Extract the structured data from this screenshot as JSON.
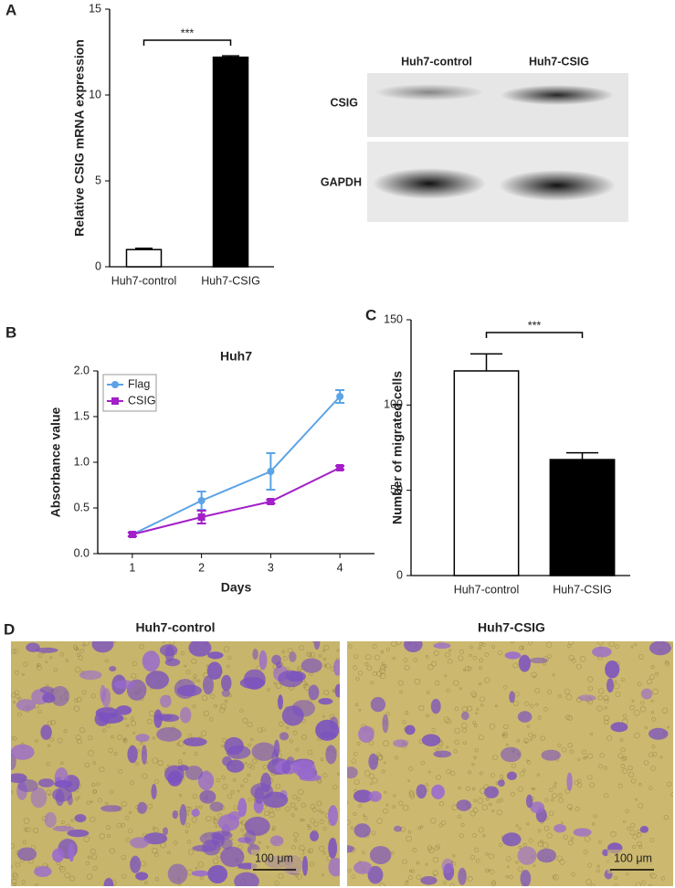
{
  "panel_labels": [
    "A",
    "B",
    "C",
    "D"
  ],
  "blot": {
    "columns": [
      "Huh7-control",
      "Huh7-CSIG"
    ],
    "rows": [
      "CSIG",
      "GAPDH"
    ]
  },
  "micrographs": {
    "titles": [
      "Huh7-control",
      "Huh7-CSIG"
    ],
    "scale_bars": [
      "100 μm",
      "100 μm"
    ]
  },
  "chart_data": [
    {
      "type": "bar",
      "ylabel": "Relative CSIG mRNA expression",
      "categories": [
        "Huh7-control",
        "Huh7-CSIG"
      ],
      "values": [
        1.0,
        12.2
      ],
      "errors": [
        0.08,
        0.08
      ],
      "colors": [
        "#ffffff",
        "#000000"
      ],
      "ylim": [
        0,
        15
      ],
      "yticks": [
        0,
        5,
        10,
        15
      ],
      "annotation": "***"
    },
    {
      "type": "line",
      "title": "Huh7",
      "xlabel": "Days",
      "ylabel": "Absorbance value",
      "x": [
        1,
        2,
        3,
        4
      ],
      "xlim": [
        0.5,
        4.5
      ],
      "xticks": [
        1,
        2,
        3,
        4
      ],
      "ylim": [
        0,
        2
      ],
      "yticks": [
        {
          "value": 0,
          "label": "0.0"
        },
        0.5,
        {
          "value": 1,
          "label": "1.0"
        },
        1.5,
        {
          "value": 2,
          "label": "2.0"
        }
      ],
      "legend": "upper left",
      "series": [
        {
          "name": "Flag",
          "color": "#5ba3e6",
          "marker": "circle",
          "values": [
            0.21,
            0.58,
            0.9,
            1.72
          ],
          "errors": [
            0.02,
            0.1,
            0.2,
            0.07
          ]
        },
        {
          "name": "CSIG",
          "color": "#a31fc9",
          "marker": "square",
          "values": [
            0.21,
            0.4,
            0.57,
            0.94
          ],
          "errors": [
            0.02,
            0.07,
            0.02,
            0.02
          ]
        }
      ]
    },
    {
      "type": "bar",
      "ylabel": "Number of migrated cells",
      "categories": [
        "Huh7-control",
        "Huh7-CSIG"
      ],
      "values": [
        120,
        68
      ],
      "errors": [
        10,
        4
      ],
      "colors": [
        "#ffffff",
        "#000000"
      ],
      "ylim": [
        0,
        150
      ],
      "yticks": [
        0,
        50,
        100,
        150
      ],
      "annotation": "***"
    }
  ]
}
